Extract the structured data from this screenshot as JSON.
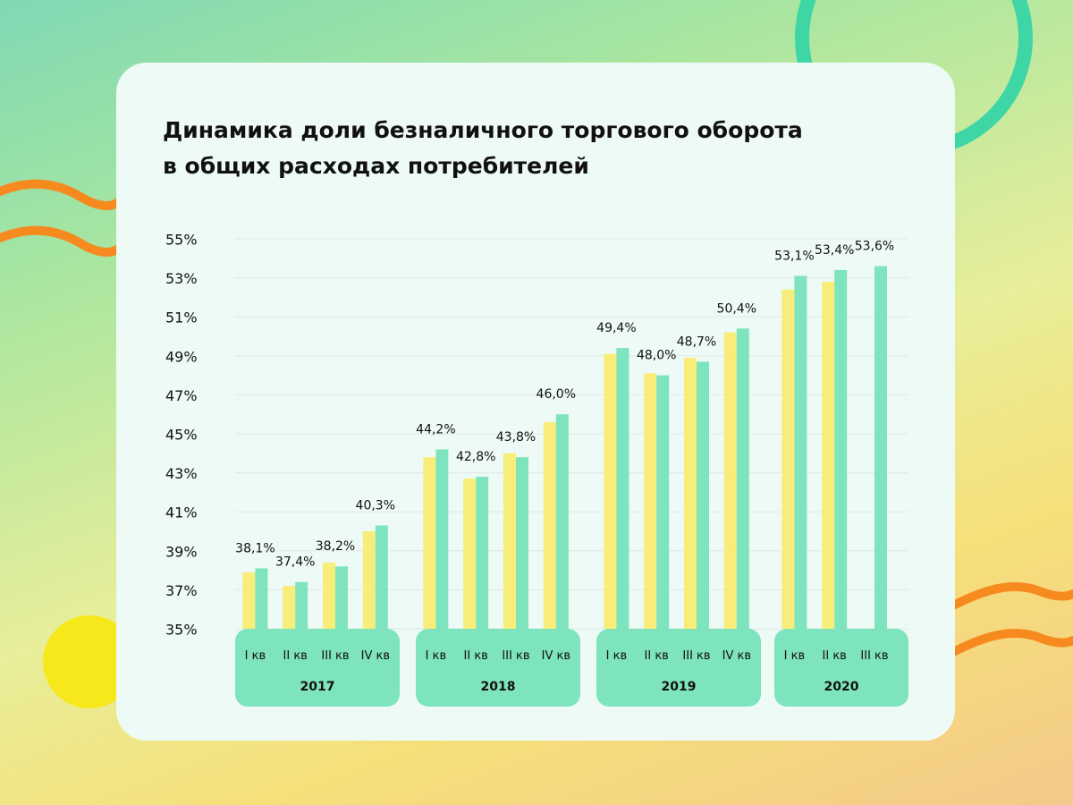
{
  "colors": {
    "bar_a": "#f7ed78",
    "bar_b": "#7ee4bd",
    "year_panel": "#7ee4bd",
    "grid": "#dfe9e6",
    "text": "#111111"
  },
  "header": {
    "title_line1": "Динамика доли безналичного торгового оборота",
    "title_line2": "в общих расходах потребителей"
  },
  "chart_data": {
    "type": "bar",
    "title": "Динамика доли безналичного торгового оборота в общих расходах потребителей",
    "y_tick_labels": [
      "55%",
      "53%",
      "51%",
      "49%",
      "47%",
      "45%",
      "43%",
      "41%",
      "39%",
      "37%",
      "35%"
    ],
    "ylim": [
      35,
      56
    ],
    "grid": true,
    "groups": [
      {
        "year": "2017",
        "quarters": [
          {
            "label": "I кв",
            "a": 37.9,
            "b": 38.1,
            "data_label": "38,1%"
          },
          {
            "label": "II кв",
            "a": 37.2,
            "b": 37.4,
            "data_label": "37,4%"
          },
          {
            "label": "III кв",
            "a": 38.4,
            "b": 38.2,
            "data_label": "38,2%"
          },
          {
            "label": "IV кв",
            "a": 40.0,
            "b": 40.3,
            "data_label": "40,3%"
          }
        ]
      },
      {
        "year": "2018",
        "quarters": [
          {
            "label": "I кв",
            "a": 43.8,
            "b": 44.2,
            "data_label": "44,2%"
          },
          {
            "label": "II кв",
            "a": 42.7,
            "b": 42.8,
            "data_label": "42,8%"
          },
          {
            "label": "III кв",
            "a": 44.0,
            "b": 43.8,
            "data_label": "43,8%"
          },
          {
            "label": "IV кв",
            "a": 45.6,
            "b": 46.0,
            "data_label": "46,0%"
          }
        ]
      },
      {
        "year": "2019",
        "quarters": [
          {
            "label": "I кв",
            "a": 49.1,
            "b": 49.4,
            "data_label": "49,4%"
          },
          {
            "label": "II кв",
            "a": 48.1,
            "b": 48.0,
            "data_label": "48,0%"
          },
          {
            "label": "III кв",
            "a": 48.9,
            "b": 48.7,
            "data_label": "48,7%"
          },
          {
            "label": "IV кв",
            "a": 50.2,
            "b": 50.4,
            "data_label": "50,4%"
          }
        ]
      },
      {
        "year": "2020",
        "quarters": [
          {
            "label": "I кв",
            "a": 52.4,
            "b": 53.1,
            "data_label": "53,1%"
          },
          {
            "label": "II кв",
            "a": 52.8,
            "b": 53.4,
            "data_label": "53,4%"
          },
          {
            "label": "III кв",
            "a": null,
            "b": 53.6,
            "data_label": "53,6%"
          }
        ]
      }
    ]
  }
}
